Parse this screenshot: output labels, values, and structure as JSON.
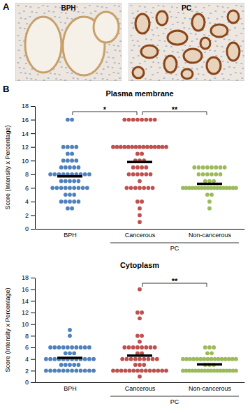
{
  "panel_labels": [
    "A",
    "B"
  ],
  "images": [
    {
      "label": "BPH"
    },
    {
      "label": "PC"
    }
  ],
  "chart_data": [
    {
      "type": "dot",
      "title": "Plasma membrane",
      "y_label": "Score (Intensity x Percentage)",
      "categories": [
        "BPH",
        "Cancerous",
        "Non-cancerous"
      ],
      "category_groups": [
        {
          "label": "PC",
          "members": [
            "Cancerous",
            "Non-cancerous"
          ]
        }
      ],
      "colors": [
        "#4f81bd",
        "#c0504d",
        "#9bbb59"
      ],
      "values": [
        [
          16,
          16,
          12,
          12,
          12,
          12,
          11,
          11,
          10,
          10,
          10,
          10,
          9,
          9,
          9,
          9,
          9,
          8,
          8,
          8,
          8,
          8,
          8,
          8,
          8,
          8,
          8,
          7,
          7,
          7,
          7,
          7,
          6,
          6,
          6,
          6,
          6,
          6,
          6,
          6,
          6,
          5,
          5,
          5,
          4,
          4,
          4,
          4,
          4,
          3,
          3
        ],
        [
          16,
          16,
          16,
          16,
          16,
          16,
          16,
          16,
          12,
          12,
          12,
          12,
          12,
          12,
          12,
          12,
          12,
          12,
          12,
          12,
          12,
          12,
          12,
          11,
          11,
          10,
          10,
          10,
          9,
          9,
          9,
          9,
          8,
          8,
          8,
          8,
          8,
          8,
          7,
          6,
          6,
          6,
          6,
          6,
          6,
          6,
          4,
          4,
          3,
          2,
          1
        ],
        [
          9,
          9,
          9,
          9,
          9,
          9,
          9,
          9,
          8,
          8,
          8,
          8,
          8,
          8,
          7,
          7,
          7,
          6,
          6,
          6,
          6,
          6,
          6,
          6,
          6,
          6,
          6,
          6,
          6,
          6,
          6,
          6,
          6,
          6,
          6,
          5,
          5,
          4,
          3
        ]
      ],
      "means": [
        7.7,
        9.8,
        6.6
      ],
      "ylim": [
        0,
        18
      ],
      "yticks": [
        0,
        2,
        4,
        6,
        8,
        10,
        12,
        14,
        16,
        18
      ],
      "annotations": [
        {
          "text": "*",
          "between": [
            "BPH",
            "Cancerous"
          ]
        },
        {
          "text": "**",
          "between": [
            "Cancerous",
            "Non-cancerous"
          ]
        }
      ]
    },
    {
      "type": "dot",
      "title": "Cytoplasm",
      "y_label": "Score (Intensity x Percentage)",
      "categories": [
        "BPH",
        "Cancerous",
        "Non-cancerous"
      ],
      "category_groups": [
        {
          "label": "PC",
          "members": [
            "Cancerous",
            "Non-cancerous"
          ]
        }
      ],
      "colors": [
        "#4f81bd",
        "#c0504d",
        "#9bbb59"
      ],
      "values": [
        [
          9,
          8,
          6,
          6,
          6,
          6,
          6,
          6,
          6,
          6,
          6,
          6,
          5,
          5,
          5,
          4,
          4,
          4,
          4,
          4,
          4,
          4,
          4,
          4,
          4,
          4,
          4,
          3,
          3,
          3,
          3,
          3,
          2,
          2,
          2,
          2,
          2,
          2,
          2,
          2,
          2,
          2,
          2,
          2
        ],
        [
          16,
          12,
          12,
          11,
          8,
          8,
          7,
          6,
          6,
          6,
          6,
          6,
          6,
          6,
          6,
          5,
          5,
          4,
          4,
          4,
          4,
          4,
          4,
          4,
          4,
          4,
          3,
          3,
          3,
          2,
          2,
          2,
          2,
          2,
          2,
          2,
          2,
          2,
          2,
          2,
          2,
          2,
          2,
          1
        ],
        [
          6,
          6,
          6,
          5,
          5,
          4,
          4,
          4,
          4,
          4,
          4,
          4,
          4,
          4,
          4,
          4,
          4,
          4,
          4,
          4,
          4,
          3,
          3,
          3,
          2,
          2,
          2,
          2,
          2,
          2,
          2,
          2,
          2,
          2,
          2,
          2,
          2,
          2,
          2,
          2,
          2,
          2
        ]
      ],
      "means": [
        4.2,
        4.6,
        3.1
      ],
      "ylim": [
        0,
        18
      ],
      "yticks": [
        0,
        2,
        4,
        6,
        8,
        10,
        12,
        14,
        16,
        18
      ],
      "annotations": [
        {
          "text": "**",
          "between": [
            "Cancerous",
            "Non-cancerous"
          ]
        }
      ]
    }
  ]
}
